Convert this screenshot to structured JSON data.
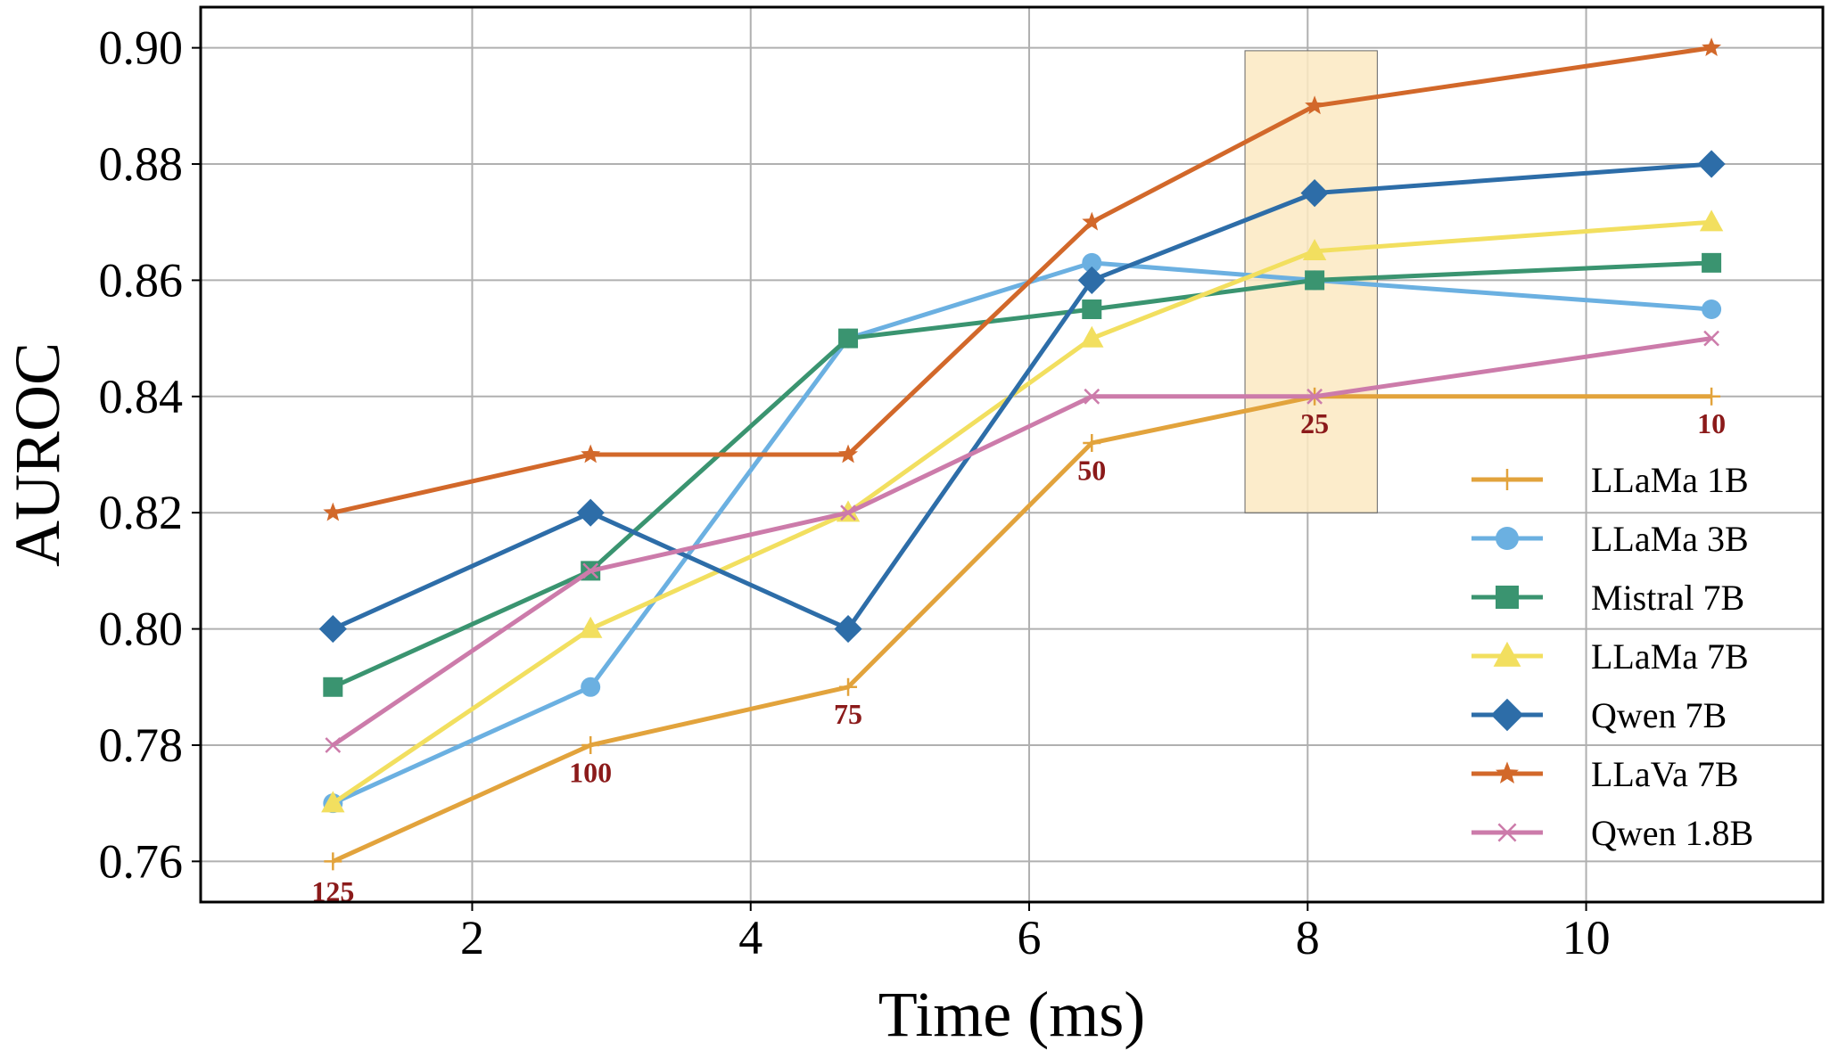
{
  "chart_data": {
    "type": "line",
    "title": "",
    "xlabel": "Time (ms)",
    "ylabel": "AUROC",
    "xlim": [
      0.05,
      11.7
    ],
    "ylim": [
      0.753,
      0.907
    ],
    "xticks": [
      2,
      4,
      6,
      8,
      10
    ],
    "xtick_labels": [
      "2",
      "4",
      "6",
      "8",
      "10"
    ],
    "yticks": [
      0.76,
      0.78,
      0.8,
      0.82,
      0.84,
      0.86,
      0.88,
      0.9
    ],
    "ytick_labels": [
      "0.76",
      "0.78",
      "0.80",
      "0.82",
      "0.84",
      "0.86",
      "0.88",
      "0.90"
    ],
    "grid": true,
    "legend_position": "lower-right",
    "highlight": {
      "x_range": [
        7.55,
        8.5
      ],
      "y_range": [
        0.82,
        0.8995
      ],
      "color": "#fbe9c2"
    },
    "x": [
      1.0,
      2.85,
      4.7,
      6.45,
      8.05,
      10.9
    ],
    "series": [
      {
        "name": "LLaMa 1B",
        "color": "#E2A33C",
        "marker": "plus",
        "values": [
          0.76,
          0.78,
          0.79,
          0.832,
          0.84,
          0.84
        ]
      },
      {
        "name": "LLaMa 3B",
        "color": "#6BB0E1",
        "marker": "circle",
        "values": [
          0.77,
          0.79,
          0.85,
          0.863,
          0.86,
          0.855
        ]
      },
      {
        "name": "Mistral 7B",
        "color": "#3A9470",
        "marker": "square",
        "values": [
          0.79,
          0.81,
          0.85,
          0.855,
          0.86,
          0.863
        ]
      },
      {
        "name": "LLaMa 7B",
        "color": "#F2DF5F",
        "marker": "triangle",
        "values": [
          0.77,
          0.8,
          0.82,
          0.85,
          0.865,
          0.87
        ]
      },
      {
        "name": "Qwen 7B",
        "color": "#2D6DA8",
        "marker": "diamond",
        "values": [
          0.8,
          0.82,
          0.8,
          0.86,
          0.875,
          0.88
        ]
      },
      {
        "name": "LLaVa 7B",
        "color": "#D2682A",
        "marker": "star",
        "values": [
          0.82,
          0.83,
          0.83,
          0.87,
          0.89,
          0.9
        ]
      },
      {
        "name": "Qwen 1.8B",
        "color": "#CC7BAA",
        "marker": "x",
        "values": [
          0.78,
          0.81,
          0.82,
          0.84,
          0.84,
          0.85
        ]
      }
    ],
    "annotations": [
      {
        "text": "125",
        "x": 1.0,
        "y": 0.755
      },
      {
        "text": "100",
        "x": 2.85,
        "y": 0.7755
      },
      {
        "text": "75",
        "x": 4.7,
        "y": 0.7855
      },
      {
        "text": "50",
        "x": 6.45,
        "y": 0.8275
      },
      {
        "text": "25",
        "x": 8.05,
        "y": 0.8355
      },
      {
        "text": "10",
        "x": 10.9,
        "y": 0.8355
      }
    ]
  }
}
